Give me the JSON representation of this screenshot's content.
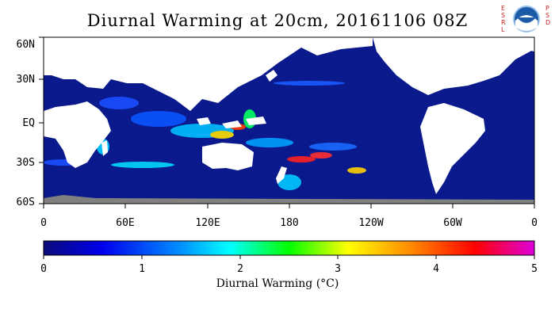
{
  "title": "Diurnal Warming at 20cm, 20161106 08Z",
  "logo": {
    "name": "NOAA",
    "left_letters": [
      "E",
      "S",
      "R",
      "L"
    ],
    "right_letters": [
      "P",
      "S",
      "D"
    ]
  },
  "map": {
    "lat_labels": [
      "60N",
      "30N",
      "EQ",
      "30S",
      "60S"
    ],
    "lon_labels": [
      "0",
      "60E",
      "120E",
      "180",
      "120W",
      "60W",
      "0"
    ]
  },
  "colorbar": {
    "ticks": [
      "0",
      "1",
      "2",
      "3",
      "4",
      "5"
    ],
    "label": "Diurnal Warming (°C)",
    "range": [
      0,
      5
    ],
    "colors": [
      "#0a0a8a",
      "#0000ff",
      "#00aaff",
      "#00ffff",
      "#00ff00",
      "#ffff00",
      "#ff8800",
      "#ff0000",
      "#dd00dd"
    ]
  },
  "colors": {
    "ocean_background": "#0a1a8c",
    "land": "#ffffff",
    "antarctica": "#808080"
  }
}
